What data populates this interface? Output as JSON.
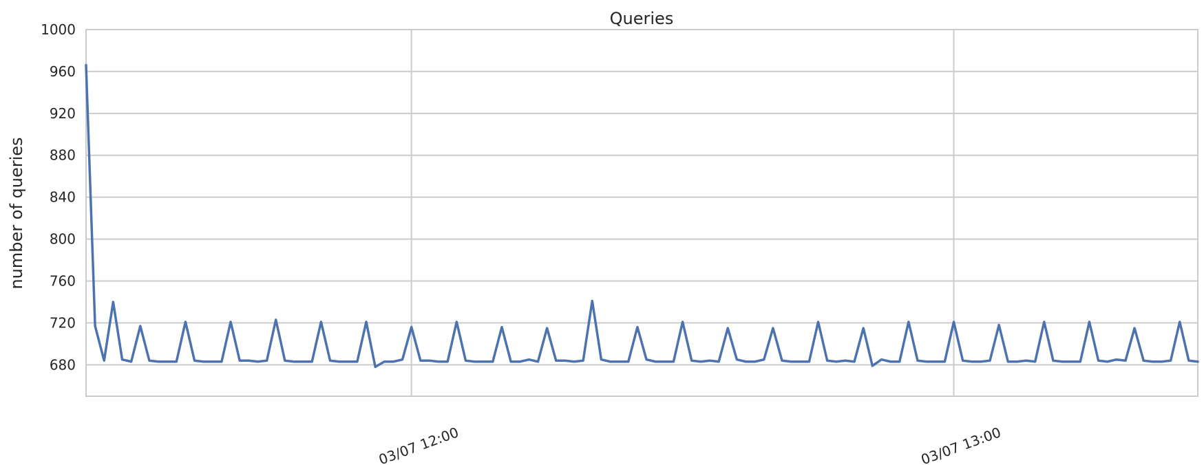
{
  "chart_data": {
    "type": "line",
    "title": "Queries",
    "xlabel": "",
    "ylabel": "number of queries",
    "ylim": [
      650,
      1000
    ],
    "y_ticks": [
      680,
      720,
      760,
      800,
      840,
      880,
      920,
      960,
      1000
    ],
    "y_tick_labels": [
      "680",
      "720",
      "760",
      "800",
      "840",
      "880",
      "920",
      "960",
      "1000"
    ],
    "x_ticks": [
      {
        "label": "03/07 12:00",
        "index": 36
      },
      {
        "label": "03/07 13:00",
        "index": 96
      }
    ],
    "x_range": [
      0,
      123
    ],
    "grid": true,
    "legend": "none",
    "series": [
      {
        "name": "queries",
        "color": "#4c72b0",
        "values": [
          966,
          717,
          684,
          740,
          685,
          683,
          717,
          684,
          683,
          683,
          683,
          721,
          684,
          683,
          683,
          683,
          721,
          684,
          684,
          683,
          684,
          723,
          684,
          683,
          683,
          683,
          721,
          684,
          683,
          683,
          683,
          721,
          678,
          683,
          683,
          685,
          716,
          684,
          684,
          683,
          683,
          721,
          684,
          683,
          683,
          683,
          716,
          683,
          683,
          685,
          683,
          715,
          684,
          684,
          683,
          684,
          741,
          685,
          683,
          683,
          683,
          716,
          685,
          683,
          683,
          683,
          721,
          684,
          683,
          684,
          683,
          715,
          685,
          683,
          683,
          685,
          715,
          684,
          683,
          683,
          683,
          721,
          684,
          683,
          684,
          683,
          715,
          679,
          685,
          683,
          683,
          721,
          684,
          683,
          683,
          683,
          721,
          684,
          683,
          683,
          684,
          718,
          683,
          683,
          684,
          683,
          721,
          684,
          683,
          683,
          683,
          721,
          684,
          683,
          685,
          684,
          715,
          684,
          683,
          683,
          684,
          721,
          684,
          683
        ]
      }
    ]
  }
}
